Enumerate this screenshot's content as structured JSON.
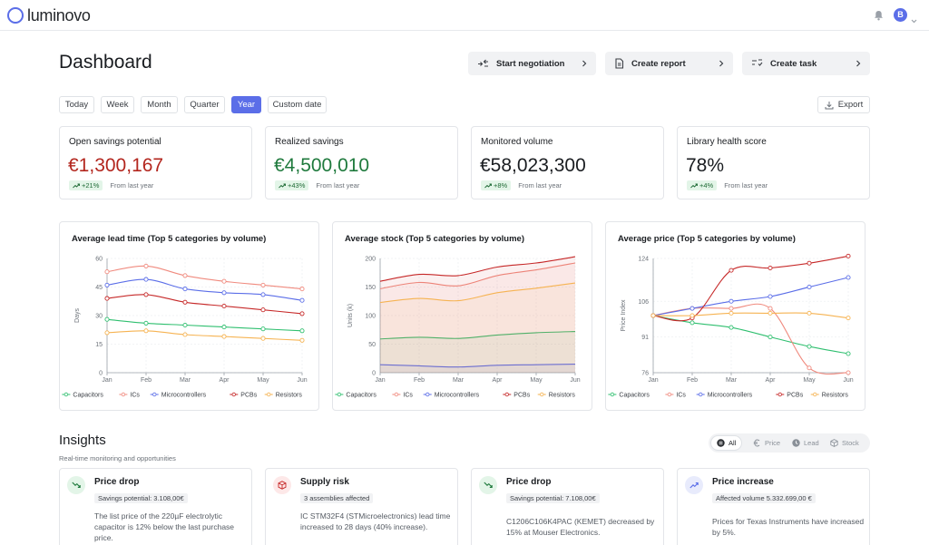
{
  "app": {
    "logo_text": "luminovo",
    "avatar_initial": "B"
  },
  "page": {
    "title": "Dashboard"
  },
  "actions": [
    {
      "label": "Start negotiation"
    },
    {
      "label": "Create report"
    },
    {
      "label": "Create task"
    }
  ],
  "date_tabs": [
    {
      "label": "Today",
      "active": false
    },
    {
      "label": "Week",
      "active": false
    },
    {
      "label": "Month",
      "active": false
    },
    {
      "label": "Quarter",
      "active": false
    },
    {
      "label": "Year",
      "active": true
    },
    {
      "label": "Custom date",
      "active": false
    }
  ],
  "export_label": "Export",
  "kpis": [
    {
      "label": "Open savings potential",
      "value": "€1,300,167",
      "change": "+21%",
      "note": "From last year",
      "tone": "red"
    },
    {
      "label": "Realized savings",
      "value": "€4,500,010",
      "change": "+43%",
      "note": "From last year",
      "tone": "green"
    },
    {
      "label": "Monitored volume",
      "value": "€58,023,300",
      "change": "+8%",
      "note": "From last year",
      "tone": "neutral"
    },
    {
      "label": "Library health score",
      "value": "78%",
      "change": "+4%",
      "note": "From last year",
      "tone": "neutral"
    }
  ],
  "colors": {
    "Capacitors": "#2fbf6f",
    "ICs": "#f08a7e",
    "Microcontrollers": "#5b6ee8",
    "PCBs": "#c62828",
    "Resistors": "#f6b352",
    "accent": "#5b6ee8"
  },
  "chart_data": [
    {
      "type": "line",
      "title": "Average lead time (Top 5 categories by volume)",
      "xlabel": "",
      "ylabel": "Days",
      "categories": [
        "Jan",
        "Feb",
        "Mar",
        "Apr",
        "May",
        "Jun"
      ],
      "ylim": [
        0,
        60
      ],
      "yticks": [
        0,
        15,
        30,
        45,
        60
      ],
      "grid": true,
      "legend": "bottom",
      "series": [
        {
          "name": "Capacitors",
          "values": [
            28,
            26,
            25,
            24,
            23,
            22
          ]
        },
        {
          "name": "ICs",
          "values": [
            53,
            56,
            51,
            48,
            46,
            44
          ]
        },
        {
          "name": "Microcontrollers",
          "values": [
            46,
            49,
            44,
            42,
            41,
            38
          ]
        },
        {
          "name": "PCBs",
          "values": [
            39,
            41,
            37,
            35,
            33,
            31
          ]
        },
        {
          "name": "Resistors",
          "values": [
            21,
            22,
            20,
            19,
            18,
            17
          ]
        }
      ]
    },
    {
      "type": "area",
      "title": "Average stock (Top 5 categories by volume)",
      "xlabel": "",
      "ylabel": "Units (k)",
      "categories": [
        "Jan",
        "Feb",
        "Mar",
        "Apr",
        "May",
        "Jun"
      ],
      "ylim": [
        0,
        200
      ],
      "yticks": [
        0,
        50,
        100,
        150,
        200
      ],
      "grid": true,
      "legend": "bottom",
      "series": [
        {
          "name": "Capacitors",
          "values": [
            59,
            62,
            60,
            66,
            70,
            72
          ]
        },
        {
          "name": "ICs",
          "values": [
            147,
            158,
            152,
            170,
            180,
            192
          ]
        },
        {
          "name": "Microcontrollers",
          "values": [
            14,
            12,
            10,
            13,
            14,
            15
          ]
        },
        {
          "name": "PCBs",
          "values": [
            160,
            172,
            170,
            185,
            192,
            203
          ]
        },
        {
          "name": "Resistors",
          "values": [
            123,
            130,
            126,
            140,
            148,
            157
          ]
        }
      ]
    },
    {
      "type": "line",
      "title": "Average price (Top 5 categories by volume)",
      "xlabel": "",
      "ylabel": "Price Index",
      "categories": [
        "Jan",
        "Feb",
        "Mar",
        "Apr",
        "May",
        "Jun"
      ],
      "ylim": [
        76,
        124
      ],
      "yticks": [
        76,
        91,
        106,
        124
      ],
      "grid": true,
      "legend": "bottom",
      "series": [
        {
          "name": "Capacitors",
          "values": [
            100,
            97,
            95,
            91,
            87,
            84
          ]
        },
        {
          "name": "ICs",
          "values": [
            100,
            103,
            103,
            103,
            78,
            76
          ]
        },
        {
          "name": "Microcontrollers",
          "values": [
            100,
            103,
            106,
            108,
            112,
            116
          ]
        },
        {
          "name": "PCBs",
          "values": [
            100,
            99,
            119,
            120,
            122,
            125
          ]
        },
        {
          "name": "Resistors",
          "values": [
            100,
            100,
            101,
            101,
            101,
            99
          ]
        }
      ]
    }
  ],
  "insights_section": {
    "title": "Insights",
    "subtitle": "Real-time monitoring and opportunities",
    "filters": [
      {
        "label": "All",
        "icon": "list-icon",
        "active": true
      },
      {
        "label": "Price",
        "icon": "euro-icon",
        "active": false
      },
      {
        "label": "Lead",
        "icon": "clock-icon",
        "active": false
      },
      {
        "label": "Stock",
        "icon": "box-icon",
        "active": false
      }
    ],
    "cards": [
      {
        "title": "Price drop",
        "badge": "Savings potential: 3.108,00€",
        "text": "The list price of the 220µF electrolytic capacitor is 12% below the last purchase price.",
        "icon": "trend-down-icon",
        "icon_bg": "#e3f5e8",
        "icon_color": "#1f7a3d"
      },
      {
        "title": "Supply risk",
        "badge": "3 assemblies affected",
        "text": "IC STM32F4 (STMicroelectronics) lead time increased to 28 days (40% increase).",
        "icon": "cube-icon",
        "icon_bg": "#fde8e8",
        "icon_color": "#c62828"
      },
      {
        "title": "Price drop",
        "badge": "Savings potential: 7.108,00€",
        "text": "C1206C106K4PAC (KEMET) decreased by 15% at Mouser Electronics.",
        "icon": "trend-down-icon",
        "icon_bg": "#e3f5e8",
        "icon_color": "#1f7a3d"
      },
      {
        "title": "Price increase",
        "badge": "Affected volume 5.332.699,00 €",
        "text": "Prices for Texas Instruments have increased by 5%.",
        "icon": "trend-up-icon",
        "icon_bg": "#e8ebfc",
        "icon_color": "#5b6ee8"
      }
    ]
  }
}
